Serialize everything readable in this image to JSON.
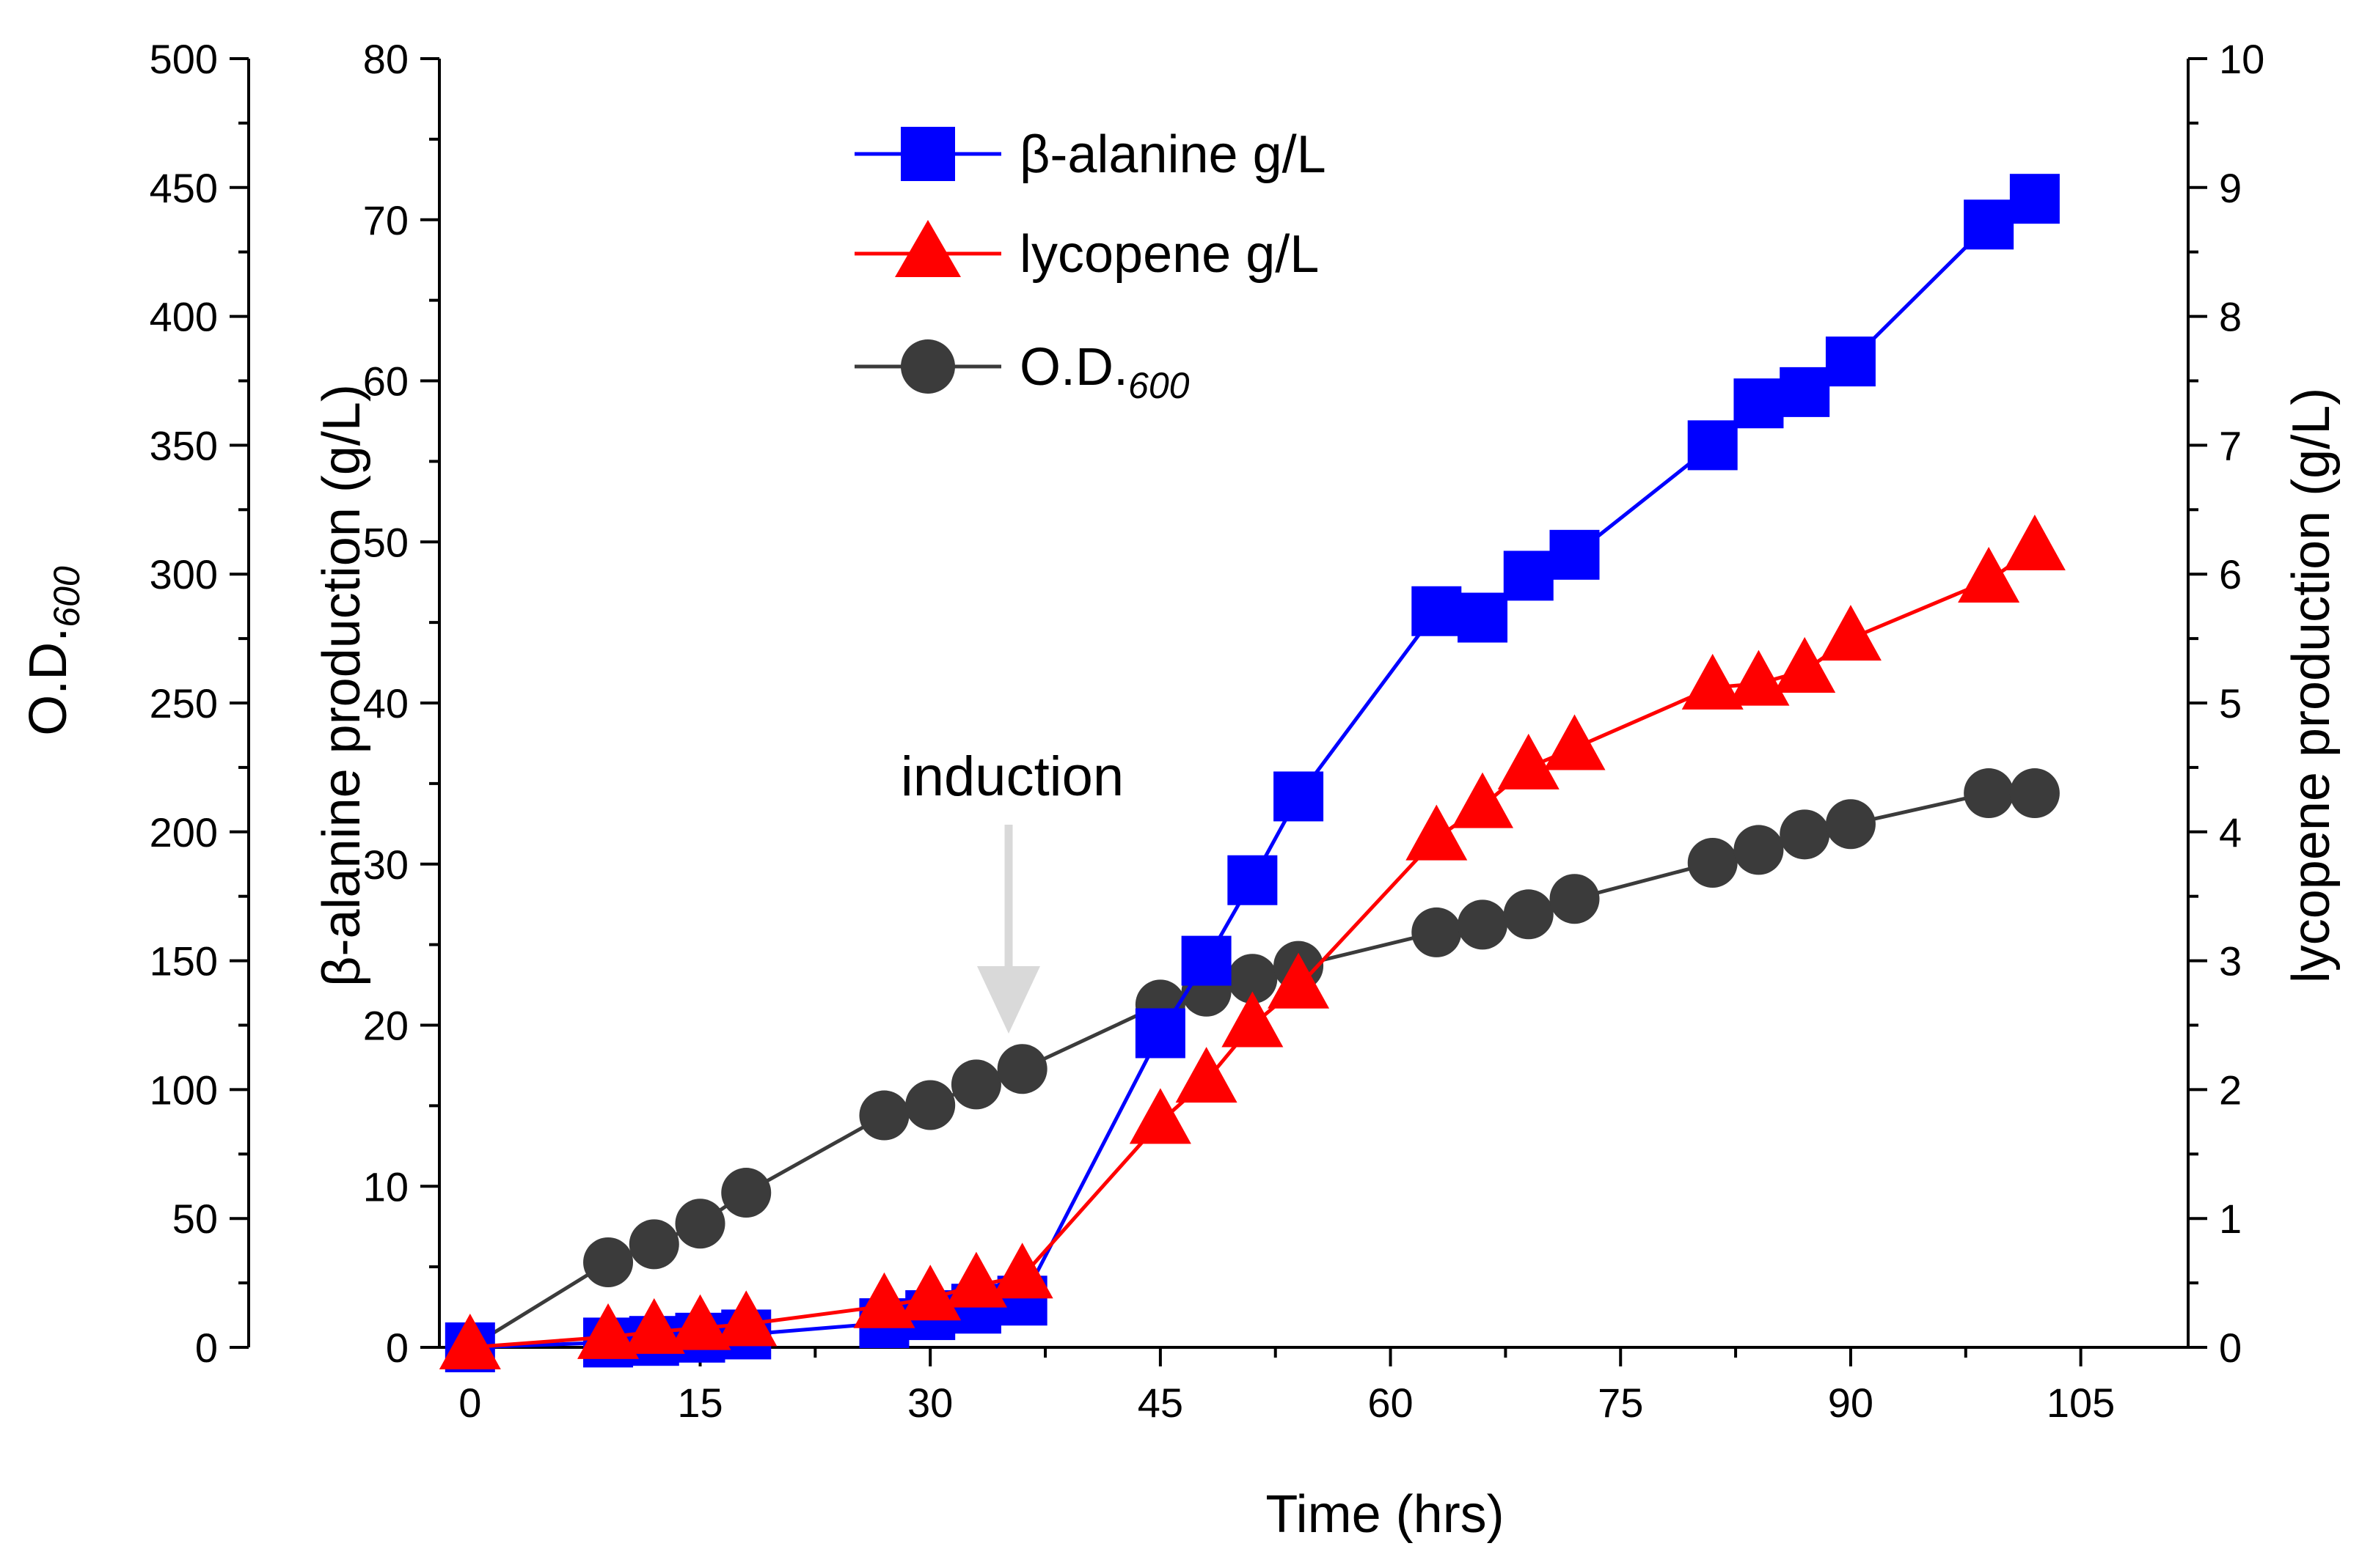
{
  "chart_data": {
    "type": "line",
    "title": "",
    "xlabel": "Time (hrs)",
    "x_ticks": [
      "0",
      "15",
      "30",
      "45",
      "60",
      "75",
      "90",
      "105"
    ],
    "xlim": [
      -2,
      112
    ],
    "axes": {
      "od": {
        "label_main": "O.D.",
        "label_sub": "600",
        "ylim": [
          0,
          500
        ],
        "ticks": [
          "0",
          "50",
          "100",
          "150",
          "200",
          "250",
          "300",
          "350",
          "400",
          "450",
          "500"
        ]
      },
      "beta": {
        "label": "β-alanine production (g/L)",
        "ylim": [
          0,
          80
        ],
        "ticks": [
          "0",
          "10",
          "20",
          "30",
          "40",
          "50",
          "60",
          "70",
          "80"
        ]
      },
      "lycopene": {
        "label": "lycopene production (g/L)",
        "ylim": [
          0,
          10
        ],
        "ticks": [
          "0",
          "1",
          "2",
          "3",
          "4",
          "5",
          "6",
          "7",
          "8",
          "9",
          "10"
        ]
      }
    },
    "series": [
      {
        "name": "O.D.600",
        "legend_main": "O.D.",
        "legend_sub": "600",
        "axis": "od",
        "color": "#3b3b3b",
        "marker": "circle",
        "x": [
          0,
          9,
          12,
          15,
          18,
          27,
          30,
          33,
          36,
          45,
          48,
          51,
          54,
          63,
          66,
          69,
          72,
          81,
          84,
          87,
          90,
          99,
          102
        ],
        "y": [
          0,
          33,
          40,
          48,
          60,
          90,
          94,
          102,
          108,
          133,
          138,
          143,
          148,
          161,
          164,
          168,
          174,
          188,
          193,
          199,
          203,
          215,
          215
        ]
      },
      {
        "name": "β-alanine g/L",
        "legend_main": "β-alanine g/L",
        "axis": "beta",
        "color": "#0000ff",
        "marker": "square",
        "x": [
          0,
          9,
          12,
          15,
          18,
          27,
          30,
          33,
          36,
          45,
          48,
          51,
          54,
          63,
          66,
          69,
          72,
          81,
          84,
          87,
          90,
          99,
          102
        ],
        "y": [
          0,
          0.3,
          0.4,
          0.6,
          0.8,
          1.5,
          2.0,
          2.4,
          2.9,
          19.5,
          24.0,
          29.0,
          34.2,
          45.7,
          45.3,
          47.9,
          49.2,
          56.0,
          58.6,
          59.3,
          61.2,
          69.7,
          71.3
        ]
      },
      {
        "name": "lycopene g/L",
        "legend_main": "lycopene g/L",
        "axis": "lycopene",
        "color": "#ff0000",
        "marker": "triangle",
        "x": [
          0,
          9,
          12,
          15,
          18,
          27,
          30,
          33,
          36,
          45,
          48,
          51,
          54,
          63,
          66,
          69,
          72,
          81,
          84,
          87,
          90,
          99,
          102
        ],
        "y": [
          0,
          0.08,
          0.12,
          0.15,
          0.18,
          0.32,
          0.38,
          0.48,
          0.55,
          1.75,
          2.07,
          2.5,
          2.8,
          3.95,
          4.2,
          4.5,
          4.65,
          5.12,
          5.15,
          5.25,
          5.5,
          5.95,
          6.2
        ]
      }
    ],
    "annotations": [
      {
        "text": "induction",
        "x": 36,
        "color": "#d9d9d9"
      }
    ],
    "legend_position": "top-center"
  }
}
